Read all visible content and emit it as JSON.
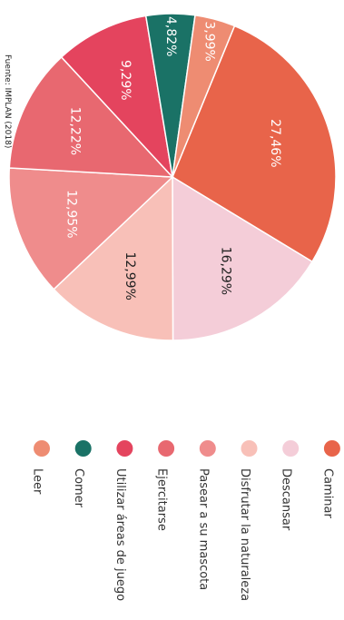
{
  "chart_data": {
    "type": "pie",
    "source": "Fuente: IMPLAN (2018)",
    "slices": [
      {
        "label": "Caminar",
        "value": 27.46,
        "text": "27,46%",
        "color": "#E8644A"
      },
      {
        "label": "Descansar",
        "value": 16.29,
        "text": "16,29%",
        "color": "#F4CDD8"
      },
      {
        "label": "Disfrutar la naturaleza",
        "value": 12.99,
        "text": "12,99%",
        "color": "#F8C0B8"
      },
      {
        "label": "Pasear a su mascota",
        "value": 12.95,
        "text": "12,95%",
        "color": "#EF8C8C"
      },
      {
        "label": "Ejercitarse",
        "value": 12.22,
        "text": "12,22%",
        "color": "#E86870"
      },
      {
        "label": "Utilizar áreas de juego",
        "value": 9.29,
        "text": "9,29%",
        "color": "#E4445E"
      },
      {
        "label": "Comer",
        "value": 4.82,
        "text": "4,82%",
        "color": "#1A7266"
      },
      {
        "label": "Leer",
        "value": 3.99,
        "text": "3,99%",
        "color": "#EE8C72"
      }
    ],
    "legend_order": [
      "Leer",
      "Comer",
      "Utilizar áreas de juego",
      "Ejercitarse",
      "Pasear a su mascota",
      "Disfrutar la naturaleza",
      "Descansar",
      "Caminar"
    ]
  }
}
